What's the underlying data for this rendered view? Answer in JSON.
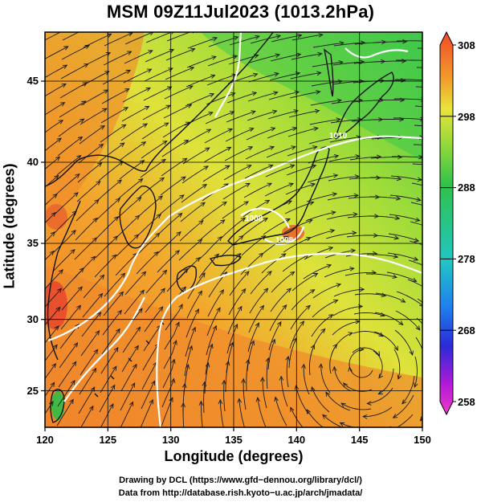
{
  "title": "MSM 09Z11Jul2023 (1013.2hPa)",
  "x_axis": {
    "label": "Longitude (degrees)",
    "ticks": [
      "120",
      "125",
      "130",
      "135",
      "140",
      "145",
      "150"
    ]
  },
  "y_axis": {
    "label": "Latitude  (degrees)",
    "ticks": [
      "25",
      "30",
      "35",
      "40",
      "45"
    ]
  },
  "colorbar": {
    "ticks": [
      "308",
      "298",
      "288",
      "278",
      "268",
      "258"
    ],
    "colors": [
      "#f04a2a",
      "#f39a2a",
      "#e8e43a",
      "#8ed83a",
      "#2fc24a",
      "#1fc6c4",
      "#1f7ff0",
      "#2a2ad8",
      "#b01ad8",
      "#f03ac8"
    ]
  },
  "contour_labels": [
    "1008",
    "1008",
    "1010"
  ],
  "credits": {
    "line1": "Drawing by DCL (https://www.gfd−dennou.org/library/dcl/)",
    "line2": "Data from http://database.rish.kyoto−u.ac.jp/arch/jmadata/"
  }
}
